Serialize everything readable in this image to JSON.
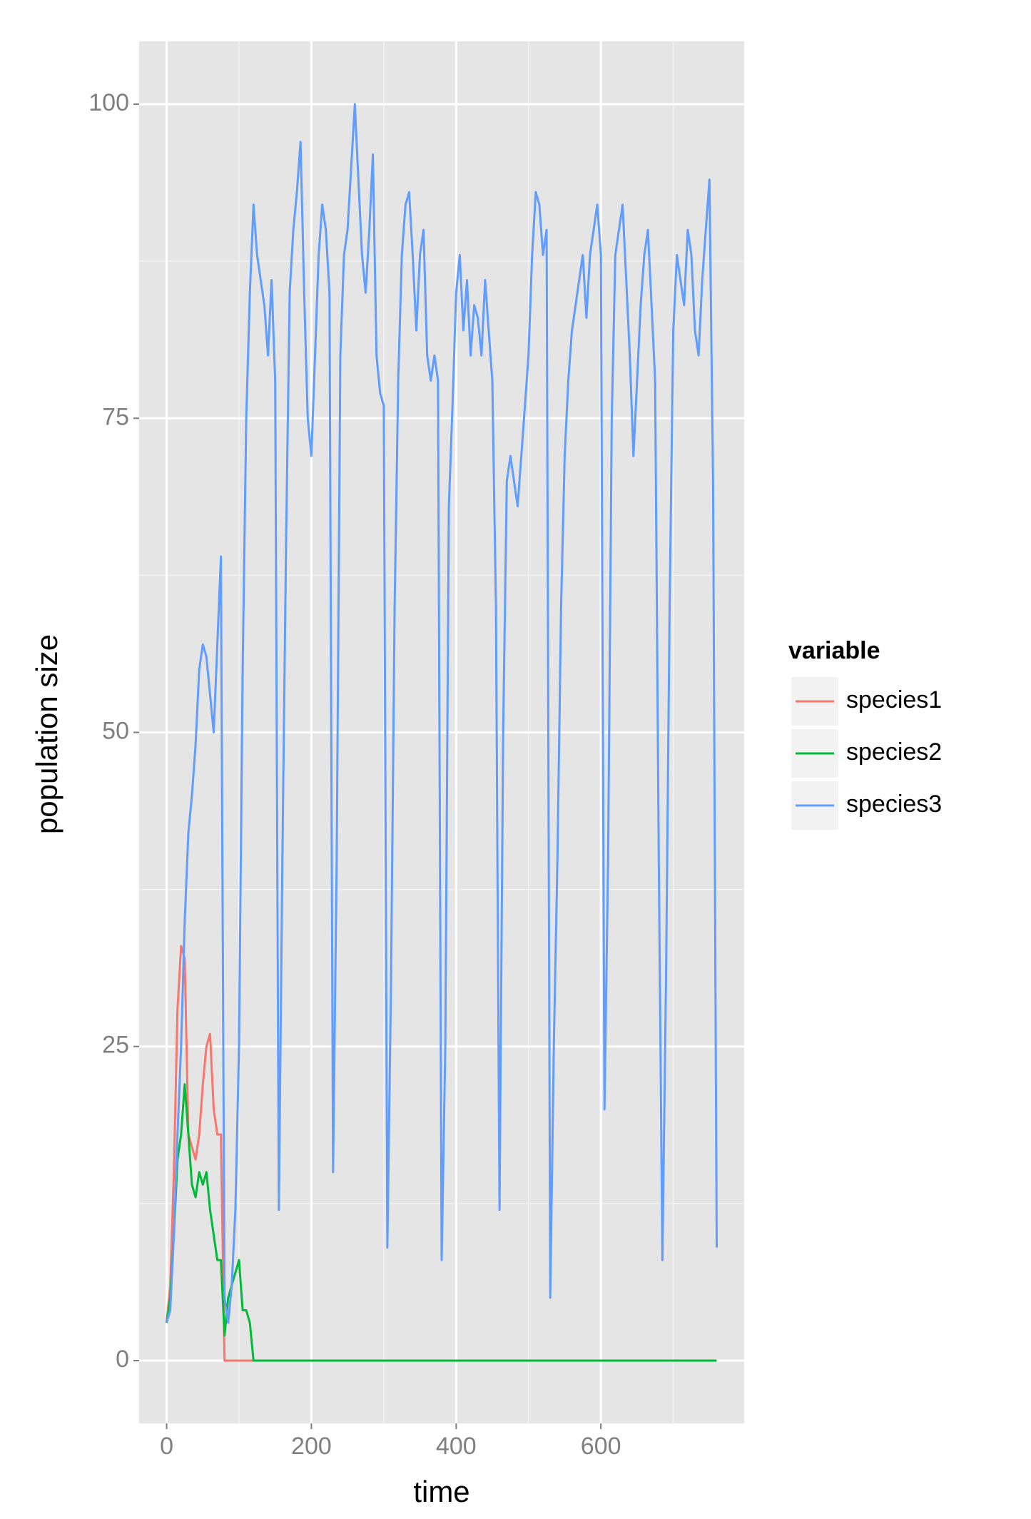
{
  "chart_data": {
    "type": "line",
    "x_label": "time",
    "y_label": "population size",
    "legend_title": "variable",
    "legend_position": "right",
    "grid": true,
    "xlim": [
      -38,
      798
    ],
    "xticks": [
      0,
      200,
      400,
      600
    ],
    "ylim": [
      -5,
      105
    ],
    "yticks": [
      0,
      25,
      50,
      75,
      100
    ],
    "x": [
      0,
      5,
      10,
      15,
      20,
      25,
      30,
      35,
      40,
      45,
      50,
      55,
      60,
      65,
      70,
      75,
      80,
      85,
      90,
      95,
      100,
      105,
      110,
      115,
      120,
      125,
      130,
      135,
      140,
      145,
      150,
      155,
      160,
      165,
      170,
      175,
      180,
      185,
      190,
      195,
      200,
      205,
      210,
      215,
      220,
      225,
      230,
      235,
      240,
      245,
      250,
      255,
      260,
      265,
      270,
      275,
      280,
      285,
      290,
      295,
      300,
      305,
      310,
      315,
      320,
      325,
      330,
      335,
      340,
      345,
      350,
      355,
      360,
      365,
      370,
      375,
      380,
      385,
      390,
      395,
      400,
      405,
      410,
      415,
      420,
      425,
      430,
      435,
      440,
      445,
      450,
      455,
      460,
      465,
      470,
      475,
      480,
      485,
      490,
      495,
      500,
      505,
      510,
      515,
      520,
      525,
      530,
      535,
      540,
      545,
      550,
      555,
      560,
      565,
      570,
      575,
      580,
      585,
      590,
      595,
      600,
      605,
      610,
      615,
      620,
      625,
      630,
      635,
      640,
      645,
      650,
      655,
      660,
      665,
      670,
      675,
      680,
      685,
      690,
      695,
      700,
      705,
      710,
      715,
      720,
      725,
      730,
      735,
      740,
      745,
      750,
      755,
      760
    ],
    "series": [
      {
        "name": "species1",
        "color": "#F8766D",
        "values": [
          3,
          6,
          15,
          28,
          33,
          32,
          18,
          17,
          16,
          18,
          22,
          25,
          26,
          20,
          18,
          18,
          0,
          0,
          0,
          0,
          0,
          0,
          0,
          0,
          0,
          0,
          0,
          0,
          0,
          0,
          0,
          0,
          0,
          0,
          0,
          0,
          0,
          0,
          0,
          0,
          0,
          0,
          0,
          0,
          0,
          0,
          0,
          0,
          0,
          0,
          0,
          0,
          0,
          0,
          0,
          0,
          0,
          0,
          0,
          0,
          0,
          0,
          0,
          0,
          0,
          0,
          0,
          0,
          0,
          0,
          0,
          0,
          0,
          0,
          0,
          0,
          0,
          0,
          0,
          0,
          0,
          0,
          0,
          0,
          0,
          0,
          0,
          0,
          0,
          0,
          0,
          0,
          0,
          0,
          0,
          0,
          0,
          0,
          0,
          0,
          0,
          0,
          0,
          0,
          0,
          0,
          0,
          0,
          0,
          0,
          0,
          0,
          0,
          0,
          0,
          0,
          0,
          0,
          0,
          0,
          0,
          0,
          0,
          0,
          0,
          0,
          0,
          0,
          0,
          0,
          0,
          0,
          0,
          0,
          0,
          0,
          0,
          0,
          0,
          0,
          0,
          0,
          0,
          0,
          0,
          0,
          0,
          0,
          0,
          0,
          0,
          0,
          0
        ]
      },
      {
        "name": "species2",
        "color": "#00BA38",
        "values": [
          3,
          5,
          10,
          16,
          18,
          22,
          18,
          14,
          13,
          15,
          14,
          15,
          12,
          10,
          8,
          8,
          2,
          5,
          6,
          7,
          8,
          4,
          4,
          3,
          0,
          0,
          0,
          0,
          0,
          0,
          0,
          0,
          0,
          0,
          0,
          0,
          0,
          0,
          0,
          0,
          0,
          0,
          0,
          0,
          0,
          0,
          0,
          0,
          0,
          0,
          0,
          0,
          0,
          0,
          0,
          0,
          0,
          0,
          0,
          0,
          0,
          0,
          0,
          0,
          0,
          0,
          0,
          0,
          0,
          0,
          0,
          0,
          0,
          0,
          0,
          0,
          0,
          0,
          0,
          0,
          0,
          0,
          0,
          0,
          0,
          0,
          0,
          0,
          0,
          0,
          0,
          0,
          0,
          0,
          0,
          0,
          0,
          0,
          0,
          0,
          0,
          0,
          0,
          0,
          0,
          0,
          0,
          0,
          0,
          0,
          0,
          0,
          0,
          0,
          0,
          0,
          0,
          0,
          0,
          0,
          0,
          0,
          0,
          0,
          0,
          0,
          0,
          0,
          0,
          0,
          0,
          0,
          0,
          0,
          0,
          0,
          0,
          0,
          0,
          0,
          0,
          0,
          0,
          0,
          0,
          0,
          0,
          0,
          0,
          0,
          0,
          0,
          0
        ]
      },
      {
        "name": "species3",
        "color": "#619CFF",
        "values": [
          3,
          4,
          10,
          18,
          25,
          35,
          42,
          45,
          49,
          55,
          57,
          56,
          53,
          50,
          57,
          64,
          5,
          3,
          6,
          12,
          25,
          55,
          75,
          85,
          92,
          88,
          86,
          84,
          80,
          86,
          78,
          12,
          40,
          65,
          85,
          90,
          93,
          97,
          85,
          75,
          72,
          80,
          88,
          92,
          90,
          85,
          15,
          40,
          80,
          88,
          90,
          95,
          100,
          94,
          88,
          85,
          90,
          96,
          80,
          77,
          76,
          9,
          30,
          60,
          78,
          88,
          92,
          93,
          88,
          82,
          88,
          90,
          80,
          78,
          80,
          78,
          8,
          25,
          68,
          76,
          85,
          88,
          82,
          86,
          80,
          84,
          83,
          80,
          86,
          82,
          78,
          60,
          12,
          50,
          70,
          72,
          70,
          68,
          72,
          76,
          80,
          88,
          93,
          92,
          88,
          90,
          5,
          25,
          40,
          60,
          72,
          78,
          82,
          84,
          86,
          88,
          83,
          88,
          90,
          92,
          88,
          20,
          40,
          75,
          88,
          90,
          92,
          86,
          80,
          72,
          78,
          84,
          88,
          90,
          84,
          78,
          40,
          8,
          30,
          60,
          82,
          88,
          86,
          84,
          90,
          88,
          82,
          80,
          86,
          90,
          94,
          70,
          9
        ]
      }
    ]
  }
}
